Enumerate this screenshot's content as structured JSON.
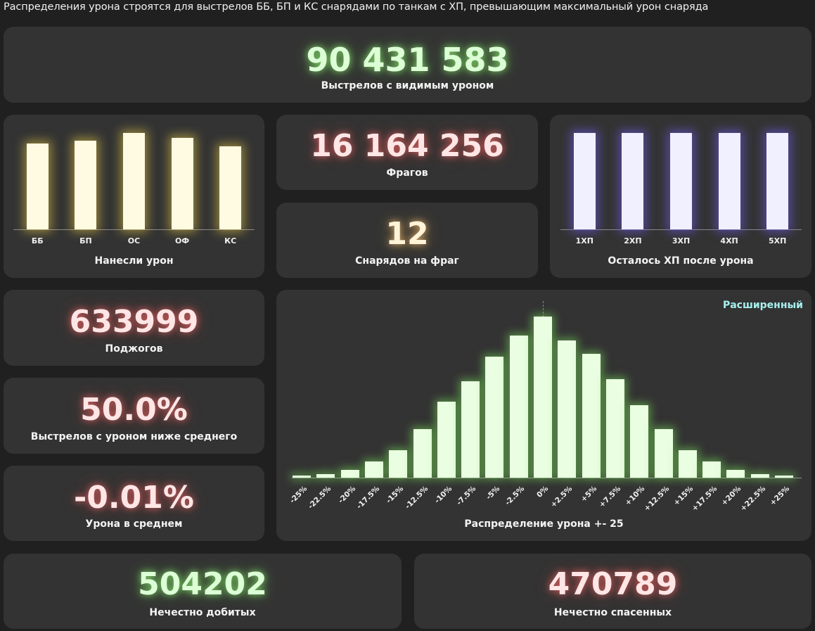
{
  "header": "Распределения урона строятся для выстрелов ББ, БП и КС снарядами по танкам с ХП, превышающим максимальный урон снаряда",
  "shots": {
    "value": "90 431 583",
    "label": "Выстрелов с видимым уроном"
  },
  "frags": {
    "value": "16 164 256",
    "label": "Фрагов"
  },
  "shells_per_frag": {
    "value": "12",
    "label": "Снарядов на фраг"
  },
  "fires": {
    "value": "633999",
    "label": "Поджогов"
  },
  "below_avg": {
    "value": "50.0%",
    "label": "Выстрелов с уроном ниже среднего"
  },
  "avg_damage": {
    "value": "-0.01%",
    "label": "Урона в среднем"
  },
  "unfair_kills": {
    "value": "504202",
    "label": "Нечестно добитых"
  },
  "unfair_saved": {
    "value": "470789",
    "label": "Нечестно спасенных"
  },
  "colors": {
    "green_glow": "#7ee65a",
    "red_glow": "#e65050",
    "gold_glow": "#e6aa50",
    "yellow_bar": "#fffbe2",
    "blue_bar": "#f0f0ff",
    "link": "#a8f0f0"
  },
  "chart_data": [
    {
      "type": "bar",
      "categories": [
        "ББ",
        "БП",
        "ОС",
        "ОФ",
        "КС"
      ],
      "values": [
        0.89,
        0.92,
        1.0,
        0.95,
        0.86
      ],
      "xlabel": "Нанесли урон",
      "legend": "none"
    },
    {
      "type": "bar",
      "categories": [
        "1ХП",
        "2ХП",
        "3ХП",
        "4ХП",
        "5ХП"
      ],
      "values": [
        1.0,
        1.0,
        1.0,
        1.0,
        1.0
      ],
      "xlabel": "Осталось ХП после урона",
      "legend": "none"
    },
    {
      "type": "bar",
      "categories": [
        "-25%",
        "-22.5%",
        "-20%",
        "-17.5%",
        "-15%",
        "-12.5%",
        "-10%",
        "-7.5%",
        "-5%",
        "-2.5%",
        "0%",
        "+2.5%",
        "+5%",
        "+7.5%",
        "+10%",
        "+12.5%",
        "+15%",
        "+17.5%",
        "+20%",
        "+22.5%",
        "+25%"
      ],
      "values": [
        0.015,
        0.02,
        0.05,
        0.1,
        0.17,
        0.3,
        0.47,
        0.6,
        0.75,
        0.88,
        1.0,
        0.85,
        0.77,
        0.61,
        0.45,
        0.3,
        0.17,
        0.1,
        0.05,
        0.02,
        0.013
      ],
      "xlabel": "Распределение урона +- 25",
      "mode_link": "Расширенный",
      "legend": "none"
    }
  ]
}
